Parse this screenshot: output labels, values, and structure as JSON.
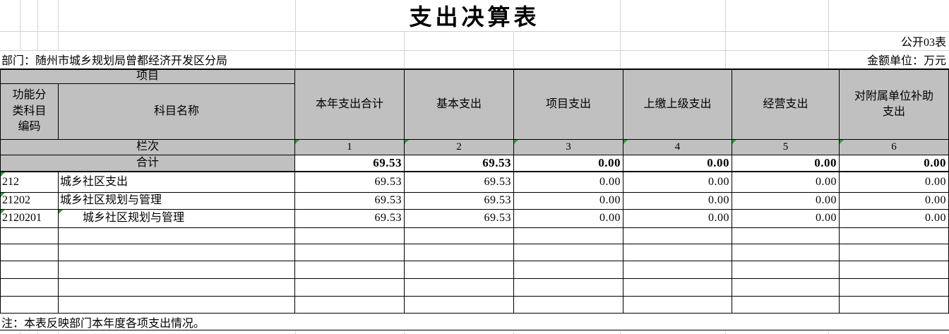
{
  "page": {
    "title": "支出决算表",
    "table_code": "公开03表",
    "department": "部门：随州市城乡规划局曾都经济开发区分局",
    "unit": "金额单位：万元",
    "note": "注：本表反映部门本年度各项支出情况。"
  },
  "table": {
    "project_header": "项目",
    "code_header": "功能分类科目编码",
    "name_header": "科目名称",
    "column_headers": [
      "本年支出合计",
      "基本支出",
      "项目支出",
      "上缴上级支出",
      "经营支出",
      "对附属单位补助支出"
    ],
    "row_index_label": "栏次",
    "column_numbers": [
      "1",
      "2",
      "3",
      "4",
      "5",
      "6"
    ],
    "total_row": {
      "label": "合计",
      "values": [
        "69.53",
        "69.53",
        "0.00",
        "0.00",
        "0.00",
        "0.00"
      ]
    },
    "rows": [
      {
        "code": "212",
        "name": "城乡社区支出",
        "values": [
          "69.53",
          "69.53",
          "0.00",
          "0.00",
          "0.00",
          "0.00"
        ]
      },
      {
        "code": "21202",
        "name": "城乡社区规划与管理",
        "values": [
          "69.53",
          "69.53",
          "0.00",
          "0.00",
          "0.00",
          "0.00"
        ]
      },
      {
        "code": "2120201",
        "name": "　　城乡社区规划与管理",
        "values": [
          "69.53",
          "69.53",
          "0.00",
          "0.00",
          "0.00",
          "0.00"
        ]
      }
    ],
    "empty_row_count": 5
  },
  "colors": {
    "header_bg": "#c0c0c0",
    "grid_faint": "#cdd3da",
    "error_green": "#2f9e44",
    "border_black": "#000000"
  }
}
